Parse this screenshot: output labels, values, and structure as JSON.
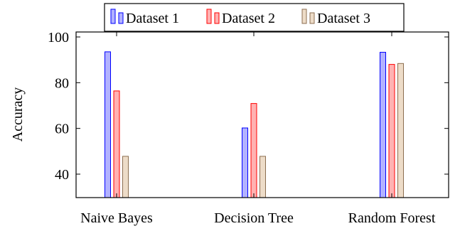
{
  "chart_data": {
    "type": "bar",
    "title": "",
    "xlabel": "",
    "ylabel": "Accuracy",
    "ylim": [
      30,
      100
    ],
    "yticks": [
      40,
      60,
      80,
      100
    ],
    "categories": [
      "Naive Bayes",
      "Decision Tree",
      "Random Forest"
    ],
    "series": [
      {
        "name": "Dataset 1",
        "values": [
          93.5,
          60.2,
          93.3
        ],
        "fill": "#b2b2ff",
        "stroke": "#0000ff"
      },
      {
        "name": "Dataset 2",
        "values": [
          76.4,
          70.9,
          88.0
        ],
        "fill": "#ffb2b2",
        "stroke": "#ff0000"
      },
      {
        "name": "Dataset 3",
        "values": [
          47.8,
          47.8,
          88.4
        ],
        "fill": "#eddcc8",
        "stroke": "#8c6e50"
      }
    ],
    "legend": "top-center",
    "grid": false
  }
}
